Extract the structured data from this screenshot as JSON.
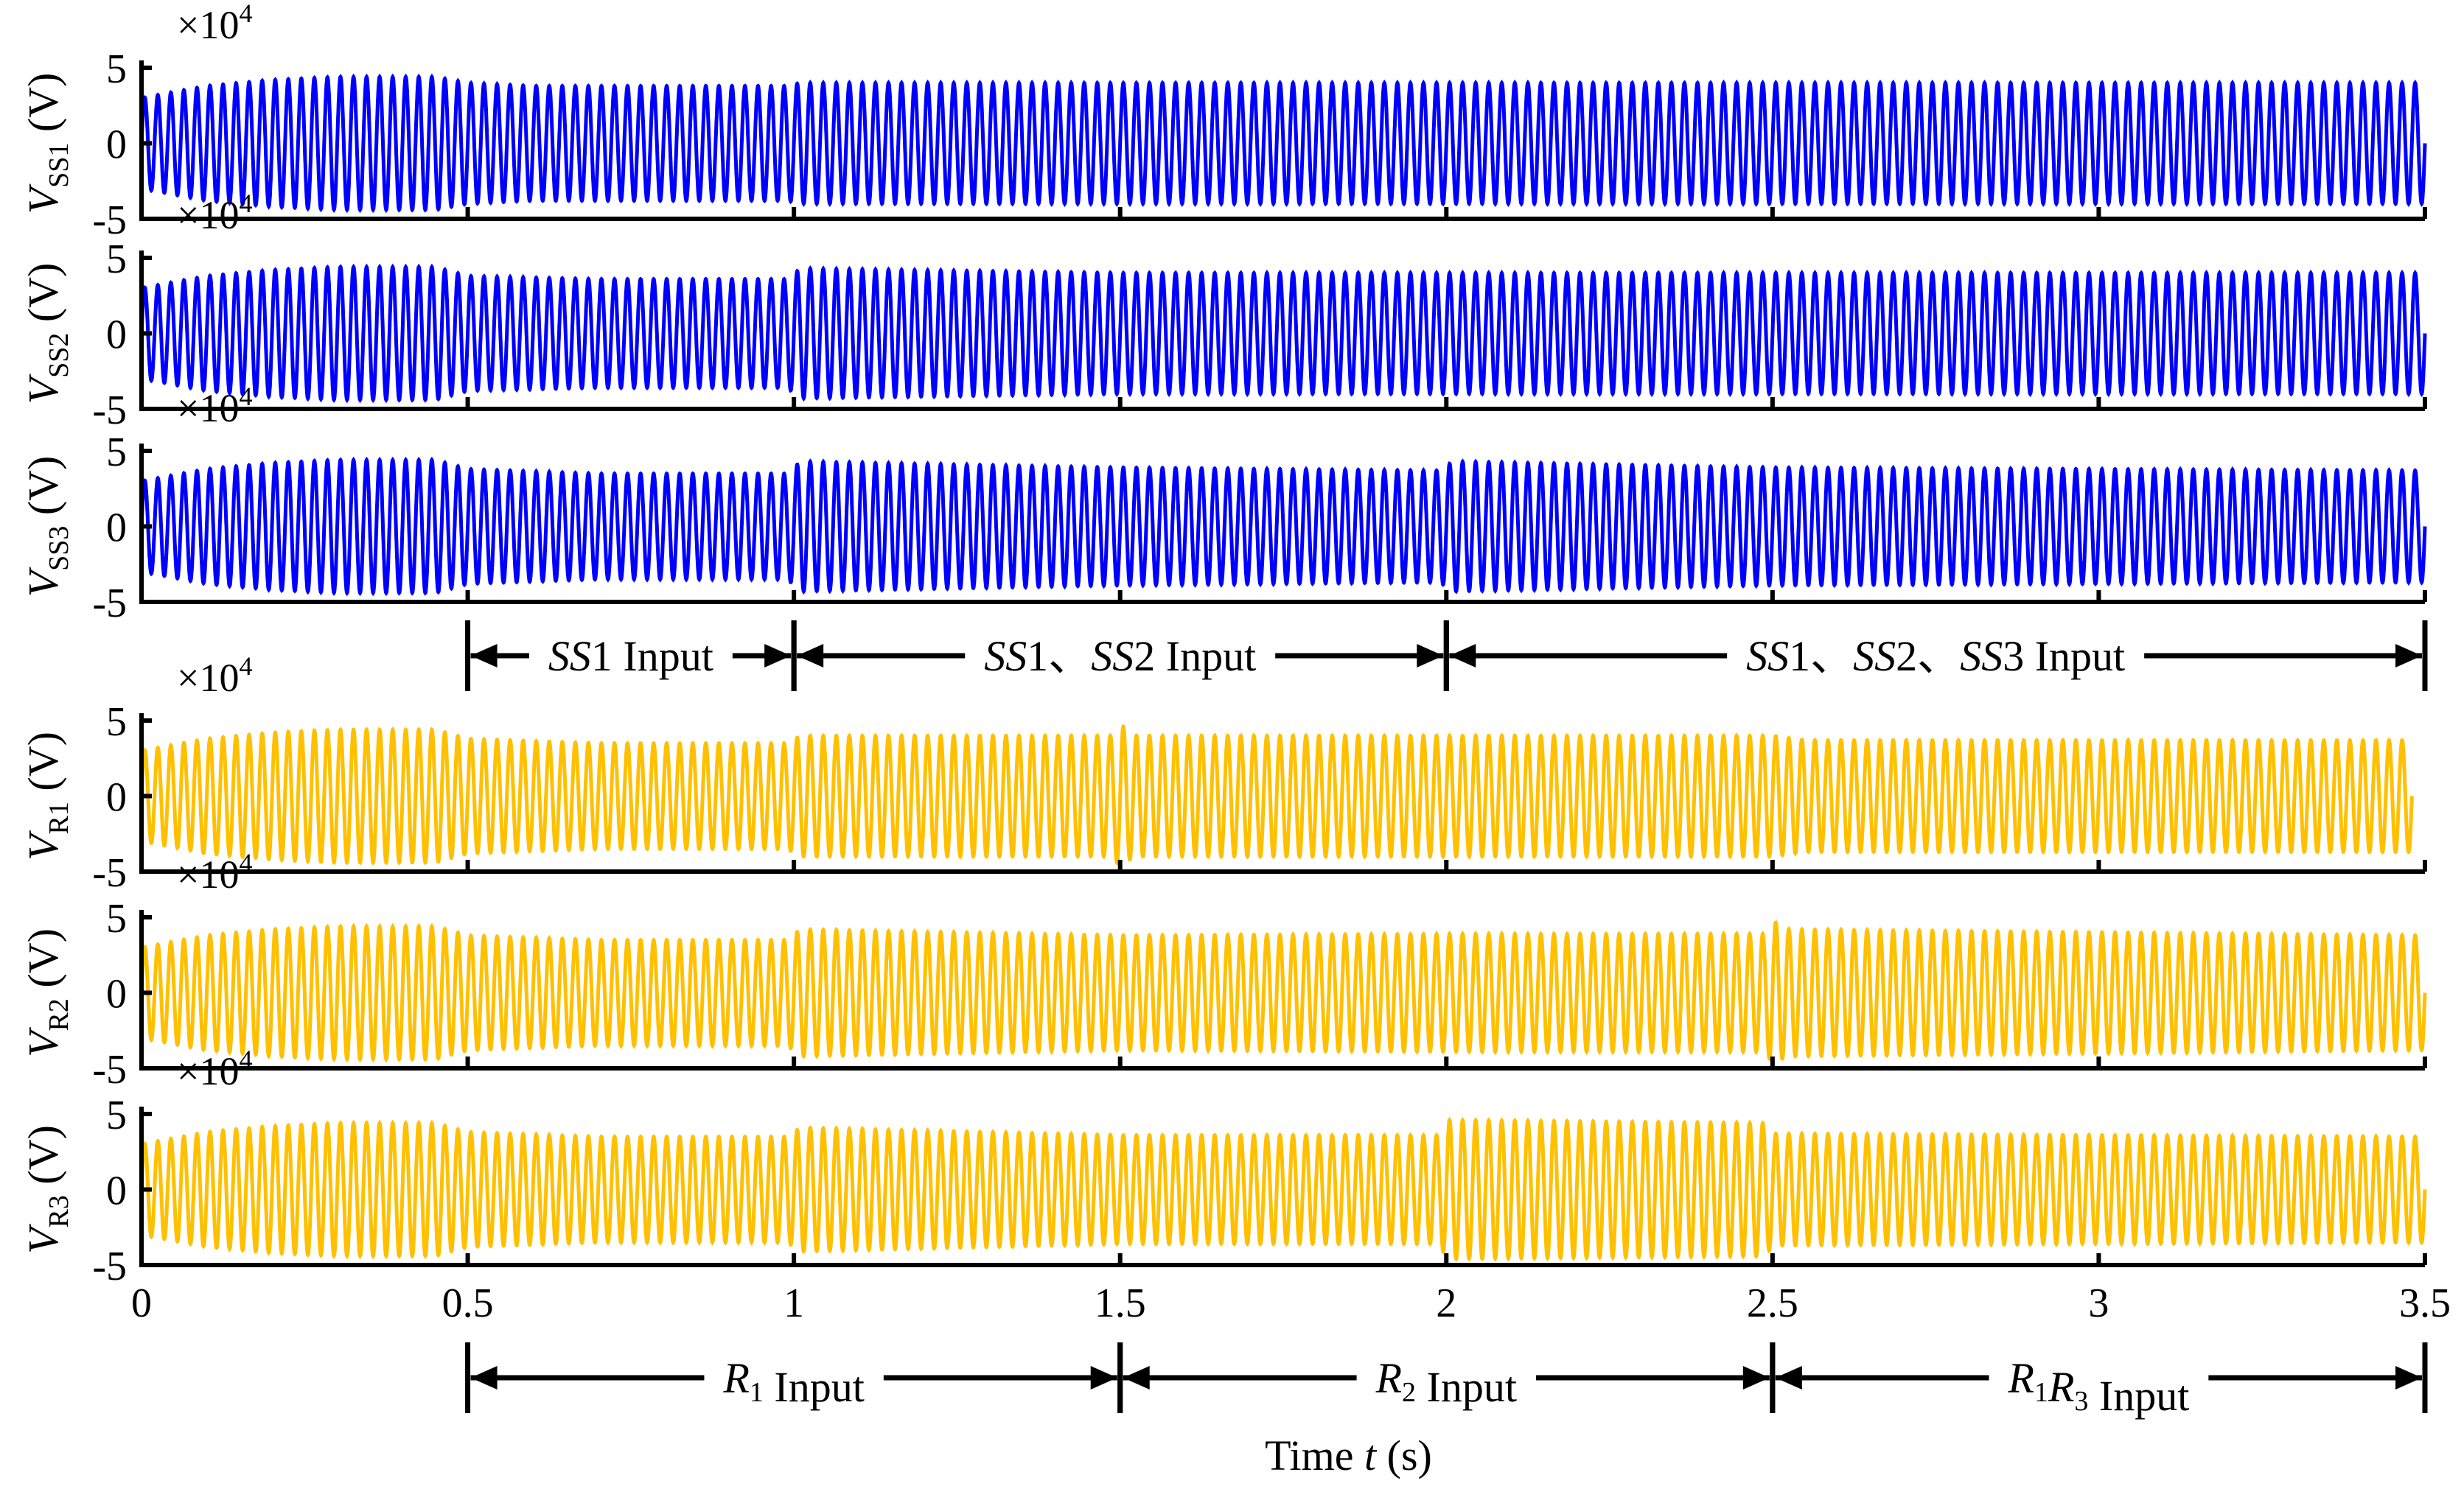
{
  "figure": {
    "multiplier": "×10",
    "multiplier_exp": "4",
    "xlabel_prefix": "Time ",
    "xlabel_var": "t",
    "xlabel_unit": " (s)"
  },
  "chart_data": {
    "type": "line",
    "title": "",
    "x_range": [
      0,
      3.5
    ],
    "y_range": [
      -5,
      5
    ],
    "x_ticks": [
      "0",
      "0.5",
      "1",
      "1.5",
      "2",
      "2.5",
      "3",
      "3.5"
    ],
    "y_ticks": [
      "5",
      "0",
      "-5"
    ],
    "xlabel": "Time t (s)",
    "y_units": "×10^4 V",
    "panels": [
      {
        "id": "ss1",
        "sym": "V",
        "sub": "SS1",
        "unit": " (V)",
        "color": "#0000FF",
        "envelope": [
          [
            0,
            3.0
          ],
          [
            0.1,
            3.8
          ],
          [
            0.2,
            4.2
          ],
          [
            0.3,
            4.4
          ],
          [
            0.45,
            4.4
          ],
          [
            0.5,
            4.0
          ],
          [
            0.6,
            3.8
          ],
          [
            0.8,
            3.8
          ],
          [
            0.99,
            3.8
          ],
          [
            1.01,
            4.0
          ],
          [
            1.5,
            4.0
          ],
          [
            2.0,
            4.0
          ],
          [
            2.5,
            4.0
          ],
          [
            3.5,
            4.0
          ]
        ]
      },
      {
        "id": "ss2",
        "sym": "V",
        "sub": "SS2",
        "unit": " (V)",
        "color": "#0000FF",
        "envelope": [
          [
            0,
            3.0
          ],
          [
            0.1,
            3.8
          ],
          [
            0.2,
            4.2
          ],
          [
            0.3,
            4.4
          ],
          [
            0.45,
            4.4
          ],
          [
            0.5,
            3.8
          ],
          [
            0.7,
            3.6
          ],
          [
            0.99,
            3.6
          ],
          [
            1.01,
            4.3
          ],
          [
            1.5,
            4.0
          ],
          [
            2.0,
            4.0
          ],
          [
            2.5,
            4.0
          ],
          [
            3.5,
            4.0
          ]
        ]
      },
      {
        "id": "ss3",
        "sym": "V",
        "sub": "SS3",
        "unit": " (V)",
        "color": "#0000FF",
        "envelope": [
          [
            0,
            3.0
          ],
          [
            0.1,
            3.8
          ],
          [
            0.2,
            4.2
          ],
          [
            0.3,
            4.4
          ],
          [
            0.45,
            4.4
          ],
          [
            0.5,
            3.8
          ],
          [
            0.7,
            3.5
          ],
          [
            0.99,
            3.5
          ],
          [
            1.01,
            4.3
          ],
          [
            1.5,
            3.9
          ],
          [
            1.99,
            3.7
          ],
          [
            2.01,
            4.3
          ],
          [
            2.5,
            3.9
          ],
          [
            3.5,
            3.7
          ]
        ]
      },
      {
        "id": "r1",
        "sym": "V",
        "sub": "R1",
        "unit": " (V)",
        "color": "#FFC000",
        "envelope": [
          [
            0,
            3.0
          ],
          [
            0.1,
            3.8
          ],
          [
            0.2,
            4.2
          ],
          [
            0.3,
            4.4
          ],
          [
            0.45,
            4.4
          ],
          [
            0.5,
            3.8
          ],
          [
            0.7,
            3.5
          ],
          [
            0.99,
            3.5
          ],
          [
            1.01,
            4.0
          ],
          [
            1.49,
            4.0
          ],
          [
            1.5,
            4.8
          ],
          [
            1.52,
            4.0
          ],
          [
            2.0,
            4.0
          ],
          [
            2.5,
            4.0
          ],
          [
            2.55,
            3.7
          ],
          [
            3.48,
            3.7
          ]
        ]
      },
      {
        "id": "r2",
        "sym": "V",
        "sub": "R2",
        "unit": " (V)",
        "color": "#FFC000",
        "envelope": [
          [
            0,
            3.0
          ],
          [
            0.1,
            3.8
          ],
          [
            0.2,
            4.2
          ],
          [
            0.3,
            4.4
          ],
          [
            0.45,
            4.4
          ],
          [
            0.5,
            3.8
          ],
          [
            0.7,
            3.5
          ],
          [
            0.99,
            3.5
          ],
          [
            1.01,
            4.2
          ],
          [
            1.5,
            3.8
          ],
          [
            2.0,
            3.9
          ],
          [
            2.49,
            3.9
          ],
          [
            2.5,
            4.8
          ],
          [
            2.52,
            4.2
          ],
          [
            3.5,
            3.8
          ]
        ]
      },
      {
        "id": "r3",
        "sym": "V",
        "sub": "R3",
        "unit": " (V)",
        "color": "#FFC000",
        "envelope": [
          [
            0,
            3.0
          ],
          [
            0.1,
            3.8
          ],
          [
            0.2,
            4.2
          ],
          [
            0.3,
            4.4
          ],
          [
            0.45,
            4.4
          ],
          [
            0.5,
            3.8
          ],
          [
            0.7,
            3.5
          ],
          [
            0.99,
            3.5
          ],
          [
            1.01,
            4.1
          ],
          [
            1.5,
            3.6
          ],
          [
            1.99,
            3.6
          ],
          [
            2.0,
            4.6
          ],
          [
            2.49,
            4.4
          ],
          [
            2.5,
            3.7
          ],
          [
            3.5,
            3.5
          ]
        ]
      }
    ],
    "annotations": {
      "ss_row": [
        {
          "from": 0.5,
          "to": 1.0,
          "parts": [
            {
              "t": "SS",
              "i": true
            },
            {
              "t": "1 Input",
              "i": false
            }
          ]
        },
        {
          "from": 1.0,
          "to": 2.0,
          "parts": [
            {
              "t": "SS",
              "i": true
            },
            {
              "t": "1、",
              "i": false
            },
            {
              "t": "SS",
              "i": true
            },
            {
              "t": "2 Input",
              "i": false
            }
          ]
        },
        {
          "from": 2.0,
          "to": 3.5,
          "parts": [
            {
              "t": "SS",
              "i": true
            },
            {
              "t": "1、",
              "i": false
            },
            {
              "t": "SS",
              "i": true
            },
            {
              "t": "2、",
              "i": false
            },
            {
              "t": "SS",
              "i": true
            },
            {
              "t": "3 Input",
              "i": false
            }
          ]
        }
      ],
      "r_row": [
        {
          "from": 0.5,
          "to": 1.5,
          "parts": [
            {
              "t": "R",
              "i": true
            },
            {
              "t": "1",
              "i": false,
              "sub": true
            },
            {
              "t": " Input",
              "i": false
            }
          ]
        },
        {
          "from": 1.5,
          "to": 2.5,
          "parts": [
            {
              "t": "R",
              "i": true
            },
            {
              "t": "2",
              "i": false,
              "sub": true
            },
            {
              "t": " Input",
              "i": false
            }
          ]
        },
        {
          "from": 2.5,
          "to": 3.5,
          "parts": [
            {
              "t": "R",
              "i": true
            },
            {
              "t": "1",
              "i": false,
              "sub": true
            },
            {
              "t": "R",
              "i": true
            },
            {
              "t": "3",
              "i": false,
              "sub": true
            },
            {
              "t": "  Input",
              "i": false
            }
          ]
        }
      ]
    }
  }
}
